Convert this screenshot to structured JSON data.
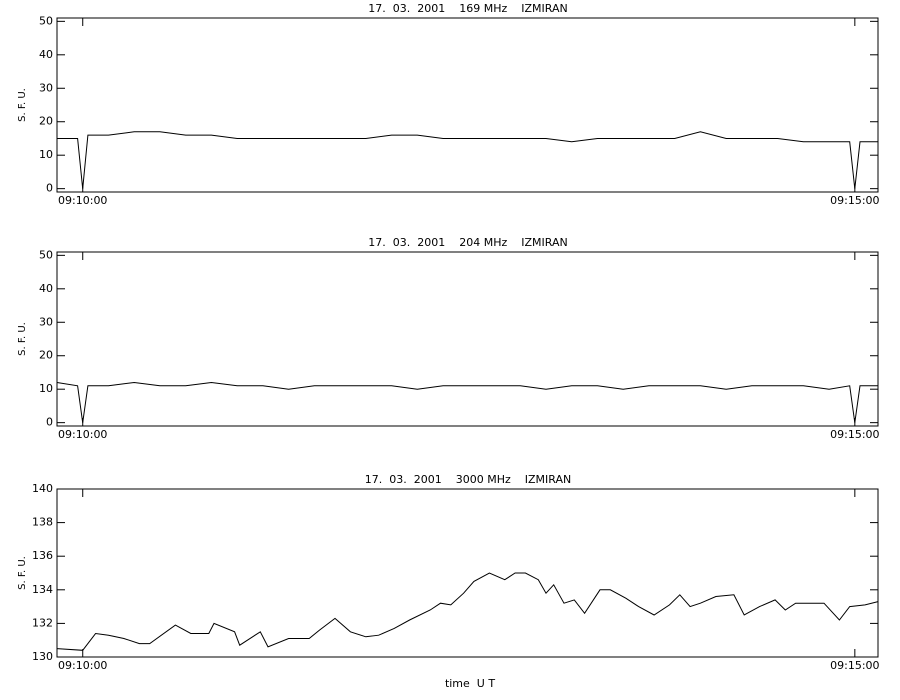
{
  "chart_data": [
    {
      "type": "line",
      "title": "17.  03.  2001    169 MHz    IZMIRAN",
      "y_label": "S. F. U.",
      "x": [
        "09:09:50",
        "09:09:58",
        "09:10:00",
        "09:10:02",
        "09:10:10",
        "09:10:20",
        "09:10:30",
        "09:10:40",
        "09:10:50",
        "09:11:00",
        "09:11:10",
        "09:11:20",
        "09:11:30",
        "09:11:40",
        "09:11:50",
        "09:12:00",
        "09:12:10",
        "09:12:20",
        "09:12:30",
        "09:12:40",
        "09:12:50",
        "09:13:00",
        "09:13:10",
        "09:13:20",
        "09:13:30",
        "09:13:40",
        "09:13:50",
        "09:14:00",
        "09:14:10",
        "09:14:20",
        "09:14:30",
        "09:14:40",
        "09:14:50",
        "09:14:58",
        "09:15:00",
        "09:15:02",
        "09:15:09"
      ],
      "values": [
        15,
        15,
        0,
        16,
        16,
        17,
        17,
        16,
        16,
        15,
        15,
        15,
        15,
        15,
        15,
        16,
        16,
        15,
        15,
        15,
        15,
        15,
        14,
        15,
        15,
        15,
        15,
        17,
        15,
        15,
        15,
        14,
        14,
        14,
        0,
        14,
        14
      ],
      "color": "#000000",
      "xlim": [
        "09:09:50",
        "09:15:09"
      ],
      "xticks": [
        "09:10:00",
        "09:15:00"
      ],
      "ylim": [
        -1,
        51
      ],
      "yticks": [
        0,
        10,
        20,
        30,
        40,
        50
      ]
    },
    {
      "type": "line",
      "title": "17.  03.  2001    204 MHz    IZMIRAN",
      "y_label": "S. F. U.",
      "x": [
        "09:09:50",
        "09:09:58",
        "09:10:00",
        "09:10:02",
        "09:10:10",
        "09:10:20",
        "09:10:30",
        "09:10:40",
        "09:10:50",
        "09:11:00",
        "09:11:10",
        "09:11:20",
        "09:11:30",
        "09:11:40",
        "09:11:50",
        "09:12:00",
        "09:12:10",
        "09:12:20",
        "09:12:30",
        "09:12:40",
        "09:12:50",
        "09:13:00",
        "09:13:10",
        "09:13:20",
        "09:13:30",
        "09:13:40",
        "09:13:50",
        "09:14:00",
        "09:14:10",
        "09:14:20",
        "09:14:30",
        "09:14:40",
        "09:14:50",
        "09:14:58",
        "09:15:00",
        "09:15:02",
        "09:15:09"
      ],
      "values": [
        12,
        11,
        0,
        11,
        11,
        12,
        11,
        11,
        12,
        11,
        11,
        10,
        11,
        11,
        11,
        11,
        10,
        11,
        11,
        11,
        11,
        10,
        11,
        11,
        10,
        11,
        11,
        11,
        10,
        11,
        11,
        11,
        10,
        11,
        0,
        11,
        11
      ],
      "color": "#000000",
      "xlim": [
        "09:09:50",
        "09:15:09"
      ],
      "xticks": [
        "09:10:00",
        "09:15:00"
      ],
      "ylim": [
        -1,
        51
      ],
      "yticks": [
        0,
        10,
        20,
        30,
        40,
        50
      ]
    },
    {
      "type": "line",
      "title": "17.  03.  2001    3000 MHz    IZMIRAN",
      "y_label": "S. F. U.",
      "x_label": "time  U T",
      "x": [
        "09:09:50",
        "09:10:00",
        "09:10:05",
        "09:10:10",
        "09:10:16",
        "09:10:22",
        "09:10:26",
        "09:10:36",
        "09:10:42",
        "09:10:49",
        "09:10:51",
        "09:10:59",
        "09:11:01",
        "09:11:09",
        "09:11:12",
        "09:11:20",
        "09:11:28",
        "09:11:32",
        "09:11:38",
        "09:11:44",
        "09:11:50",
        "09:11:55",
        "09:12:01",
        "09:12:07",
        "09:12:15",
        "09:12:19",
        "09:12:23",
        "09:12:28",
        "09:12:32",
        "09:12:38",
        "09:12:44",
        "09:12:48",
        "09:12:52",
        "09:12:57",
        "09:13:00",
        "09:13:03",
        "09:13:07",
        "09:13:11",
        "09:13:15",
        "09:13:21",
        "09:13:25",
        "09:13:31",
        "09:13:36",
        "09:13:42",
        "09:13:48",
        "09:13:52",
        "09:13:56",
        "09:14:00",
        "09:14:06",
        "09:14:13",
        "09:14:17",
        "09:14:23",
        "09:14:29",
        "09:14:33",
        "09:14:37",
        "09:14:43",
        "09:14:48",
        "09:14:54",
        "09:14:58",
        "09:15:04",
        "09:15:09"
      ],
      "values": [
        130.5,
        130.4,
        131.4,
        131.3,
        131.1,
        130.8,
        130.8,
        131.9,
        131.4,
        131.4,
        132.0,
        131.5,
        130.7,
        131.5,
        130.6,
        131.1,
        131.1,
        131.6,
        132.3,
        131.5,
        131.2,
        131.3,
        131.7,
        132.2,
        132.8,
        133.2,
        133.1,
        133.8,
        134.5,
        135.0,
        134.6,
        135.0,
        135.0,
        134.6,
        133.8,
        134.3,
        133.2,
        133.4,
        132.6,
        134.0,
        134.0,
        133.5,
        133.0,
        132.5,
        133.1,
        133.7,
        133.0,
        133.2,
        133.6,
        133.7,
        132.5,
        133.0,
        133.4,
        132.8,
        133.2,
        133.2,
        133.2,
        132.2,
        133.0,
        133.1,
        133.3
      ],
      "color": "#000000",
      "xlim": [
        "09:09:50",
        "09:15:09"
      ],
      "xticks": [
        "09:10:00",
        "09:15:00"
      ],
      "ylim": [
        130,
        140
      ],
      "yticks": [
        130,
        132,
        134,
        136,
        138,
        140
      ]
    }
  ]
}
